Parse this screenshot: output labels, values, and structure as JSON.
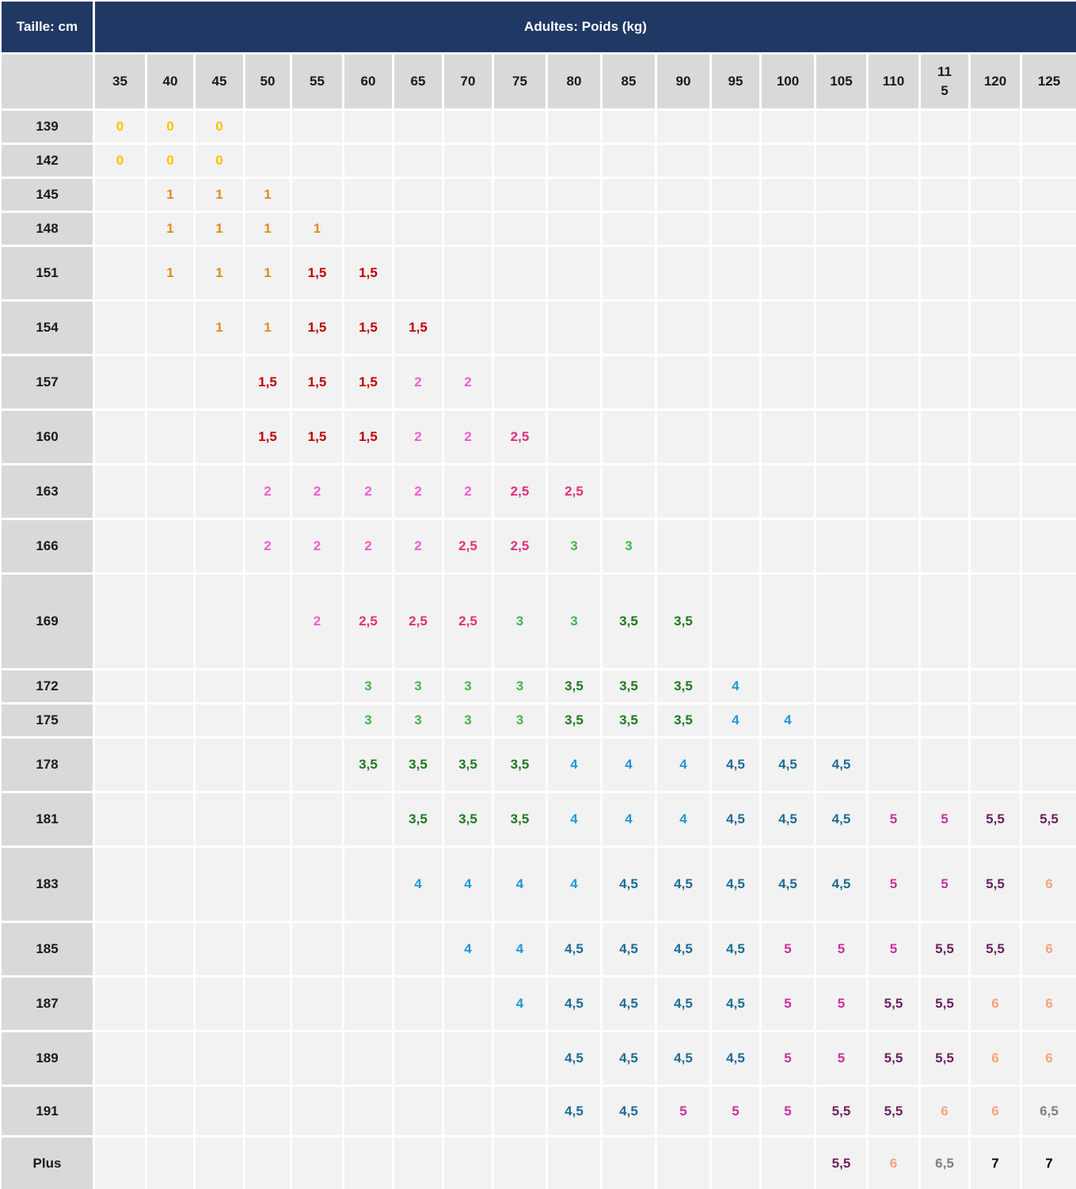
{
  "corner_label": "Taille: cm",
  "title": "Adultes: Poids (kg)",
  "weights": [
    "35",
    "40",
    "45",
    "50",
    "55",
    "60",
    "65",
    "70",
    "75",
    "80",
    "85",
    "90",
    "95",
    "100",
    "105",
    "110",
    "11\n5",
    "120",
    "125"
  ],
  "levels": {
    "0": {
      "color": "#ffc000"
    },
    "1": {
      "color": "#e38a1c"
    },
    "1,5": {
      "color": "#c00000"
    },
    "2": {
      "color": "#f25ccf"
    },
    "2,5": {
      "color": "#e0307a"
    },
    "3": {
      "color": "#45b54c"
    },
    "3,5": {
      "color": "#1e7a1e"
    },
    "4": {
      "color": "#2196d8"
    },
    "4,5": {
      "color": "#1f6b96"
    },
    "5": {
      "color": "#c8319b"
    },
    "5,5": {
      "color": "#6b1f5e"
    },
    "6": {
      "color": "#f2a57a"
    },
    "6,5": {
      "color": "#7f7f7f"
    },
    "7": {
      "color": "#000000"
    }
  },
  "rows": [
    {
      "height": "139",
      "cells": [
        "0",
        "0",
        "0",
        "",
        "",
        "",
        "",
        "",
        "",
        "",
        "",
        "",
        "",
        "",
        "",
        "",
        "",
        "",
        ""
      ]
    },
    {
      "height": "142",
      "cells": [
        "0",
        "0",
        "0",
        "",
        "",
        "",
        "",
        "",
        "",
        "",
        "",
        "",
        "",
        "",
        "",
        "",
        "",
        "",
        ""
      ]
    },
    {
      "height": "145",
      "cells": [
        "",
        "1",
        "1",
        "1",
        "",
        "",
        "",
        "",
        "",
        "",
        "",
        "",
        "",
        "",
        "",
        "",
        "",
        "",
        ""
      ]
    },
    {
      "height": "148",
      "cells": [
        "",
        "1",
        "1",
        "1",
        "1",
        "",
        "",
        "",
        "",
        "",
        "",
        "",
        "",
        "",
        "",
        "",
        "",
        "",
        ""
      ]
    },
    {
      "height": "151",
      "cells": [
        "",
        "1",
        "1",
        "1",
        "1,5",
        "1,5",
        "",
        "",
        "",
        "",
        "",
        "",
        "",
        "",
        "",
        "",
        "",
        "",
        ""
      ]
    },
    {
      "height": "154",
      "cells": [
        "",
        "",
        "1",
        "1",
        "1,5",
        "1,5",
        "1,5",
        "",
        "",
        "",
        "",
        "",
        "",
        "",
        "",
        "",
        "",
        "",
        ""
      ]
    },
    {
      "height": "157",
      "cells": [
        "",
        "",
        "",
        "1,5",
        "1,5",
        "1,5",
        "2",
        "2",
        "",
        "",
        "",
        "",
        "",
        "",
        "",
        "",
        "",
        "",
        ""
      ]
    },
    {
      "height": "160",
      "cells": [
        "",
        "",
        "",
        "1,5",
        "1,5",
        "1,5",
        "2",
        "2",
        "2,5",
        "",
        "",
        "",
        "",
        "",
        "",
        "",
        "",
        "",
        ""
      ]
    },
    {
      "height": "163",
      "cells": [
        "",
        "",
        "",
        "2",
        "2",
        "2",
        "2",
        "2",
        "2,5",
        "2,5",
        "",
        "",
        "",
        "",
        "",
        "",
        "",
        "",
        ""
      ]
    },
    {
      "height": "166",
      "cells": [
        "",
        "",
        "",
        "2",
        "2",
        "2",
        "2",
        "2,5",
        "2,5",
        "3",
        "3",
        "",
        "",
        "",
        "",
        "",
        "",
        "",
        ""
      ]
    },
    {
      "height": "169",
      "cells": [
        "",
        "",
        "",
        "",
        "2",
        "2,5",
        "2,5",
        "2,5",
        "3",
        "3",
        "3,5",
        "3,5",
        "",
        "",
        "",
        "",
        "",
        "",
        ""
      ]
    },
    {
      "height": "172",
      "cells": [
        "",
        "",
        "",
        "",
        "",
        "3",
        "3",
        "3",
        "3",
        "3,5",
        "3,5",
        "3,5",
        "4",
        "",
        "",
        "",
        "",
        "",
        ""
      ]
    },
    {
      "height": "175",
      "cells": [
        "",
        "",
        "",
        "",
        "",
        "3",
        "3",
        "3",
        "3",
        "3,5",
        "3,5",
        "3,5",
        "4",
        "4",
        "",
        "",
        "",
        "",
        ""
      ]
    },
    {
      "height": "178",
      "cells": [
        "",
        "",
        "",
        "",
        "",
        "3,5",
        "3,5",
        "3,5",
        "3,5",
        "4",
        "4",
        "4",
        "4,5",
        "4,5",
        "4,5",
        "",
        "",
        "",
        ""
      ]
    },
    {
      "height": "181",
      "cells": [
        "",
        "",
        "",
        "",
        "",
        "",
        "3,5",
        "3,5",
        "3,5",
        "4",
        "4",
        "4",
        "4,5",
        "4,5",
        "4,5",
        "5",
        "5",
        "5,5",
        "5,5"
      ]
    },
    {
      "height": "183",
      "cells": [
        "",
        "",
        "",
        "",
        "",
        "",
        "4",
        "4",
        "4",
        "4",
        "4,5",
        "4,5",
        "4,5",
        "4,5",
        "4,5",
        "5",
        "5",
        "5,5",
        "6"
      ]
    },
    {
      "height": "185",
      "cells": [
        "",
        "",
        "",
        "",
        "",
        "",
        "",
        "4",
        "4",
        "4,5",
        "4,5",
        "4,5",
        "4,5",
        "5",
        "5",
        "5",
        "5,5",
        "5,5",
        "6"
      ]
    },
    {
      "height": "187",
      "cells": [
        "",
        "",
        "",
        "",
        "",
        "",
        "",
        "",
        "4",
        "4,5",
        "4,5",
        "4,5",
        "4,5",
        "5",
        "5",
        "5,5",
        "5,5",
        "6",
        "6"
      ]
    },
    {
      "height": "189",
      "cells": [
        "",
        "",
        "",
        "",
        "",
        "",
        "",
        "",
        "",
        "4,5",
        "4,5",
        "4,5",
        "4,5",
        "5",
        "5",
        "5,5",
        "5,5",
        "6",
        "6"
      ]
    },
    {
      "height": "191",
      "cells": [
        "",
        "",
        "",
        "",
        "",
        "",
        "",
        "",
        "",
        "4,5",
        "4,5",
        "5",
        "5",
        "5",
        "5,5",
        "5,5",
        "6",
        "6",
        "6,5"
      ]
    },
    {
      "height": "Plus",
      "cells": [
        "",
        "",
        "",
        "",
        "",
        "",
        "",
        "",
        "",
        "",
        "",
        "",
        "",
        "",
        "5,5",
        "6",
        "6,5",
        "7",
        "7"
      ]
    }
  ]
}
